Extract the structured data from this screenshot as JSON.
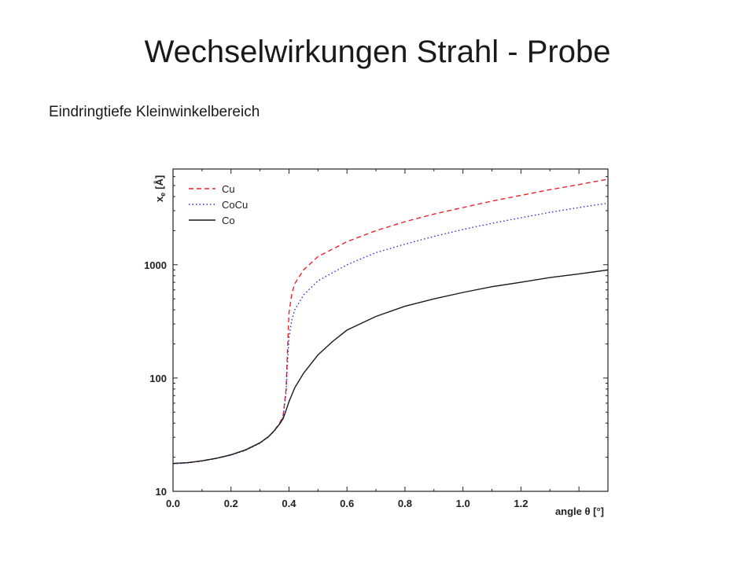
{
  "slide": {
    "title": "Wechselwirkungen Strahl - Probe",
    "subtitle": "Eindringtiefe Kleinwinkelbereich"
  },
  "chart_data": {
    "type": "line",
    "xlabel": "angle θ [°]",
    "ylabel": "x_e [Å]",
    "ylabel_main": "x",
    "ylabel_sub": "e",
    "ylabel_unit": "[Å]",
    "xlim": [
      0.0,
      1.5
    ],
    "ylim": [
      10,
      7000
    ],
    "yscale": "log",
    "xticks": [
      "0.0",
      "0.2",
      "0.4",
      "0.6",
      "0.8",
      "1.0",
      "1.2"
    ],
    "yticks": [
      {
        "value": 10,
        "label": "10"
      },
      {
        "value": 100,
        "label": "100"
      },
      {
        "value": 1000,
        "label": "1000"
      }
    ],
    "grid": false,
    "legend_position": "top-left",
    "series": [
      {
        "name": "Cu",
        "color": "#e8242b",
        "style": "dashed",
        "points": [
          [
            0.0,
            17.6
          ],
          [
            0.05,
            17.9
          ],
          [
            0.1,
            18.6
          ],
          [
            0.15,
            19.6
          ],
          [
            0.2,
            21.0
          ],
          [
            0.25,
            23.2
          ],
          [
            0.3,
            26.8
          ],
          [
            0.33,
            30.5
          ],
          [
            0.35,
            34.5
          ],
          [
            0.37,
            41
          ],
          [
            0.38,
            47
          ],
          [
            0.39,
            80
          ],
          [
            0.395,
            180
          ],
          [
            0.4,
            380
          ],
          [
            0.41,
            560
          ],
          [
            0.42,
            680
          ],
          [
            0.45,
            900
          ],
          [
            0.5,
            1180
          ],
          [
            0.6,
            1600
          ],
          [
            0.7,
            2000
          ],
          [
            0.8,
            2400
          ],
          [
            0.9,
            2800
          ],
          [
            1.0,
            3200
          ],
          [
            1.1,
            3650
          ],
          [
            1.2,
            4100
          ],
          [
            1.3,
            4600
          ],
          [
            1.4,
            5100
          ],
          [
            1.5,
            5700
          ]
        ]
      },
      {
        "name": "CoCu",
        "color": "#2a2ad6",
        "style": "dotted",
        "points": [
          [
            0.0,
            17.5
          ],
          [
            0.05,
            17.8
          ],
          [
            0.1,
            18.5
          ],
          [
            0.15,
            19.5
          ],
          [
            0.2,
            20.9
          ],
          [
            0.25,
            23.0
          ],
          [
            0.3,
            26.6
          ],
          [
            0.33,
            30.3
          ],
          [
            0.35,
            34.2
          ],
          [
            0.37,
            40
          ],
          [
            0.38,
            46
          ],
          [
            0.39,
            75
          ],
          [
            0.395,
            140
          ],
          [
            0.4,
            230
          ],
          [
            0.41,
            330
          ],
          [
            0.42,
            400
          ],
          [
            0.45,
            540
          ],
          [
            0.5,
            720
          ],
          [
            0.6,
            1000
          ],
          [
            0.7,
            1280
          ],
          [
            0.8,
            1520
          ],
          [
            0.9,
            1780
          ],
          [
            1.0,
            2050
          ],
          [
            1.1,
            2320
          ],
          [
            1.2,
            2600
          ],
          [
            1.3,
            2900
          ],
          [
            1.4,
            3200
          ],
          [
            1.5,
            3500
          ]
        ]
      },
      {
        "name": "Co",
        "color": "#1a1a1a",
        "style": "solid",
        "points": [
          [
            0.0,
            17.6
          ],
          [
            0.05,
            17.9
          ],
          [
            0.1,
            18.6
          ],
          [
            0.15,
            19.6
          ],
          [
            0.2,
            21.0
          ],
          [
            0.25,
            23.2
          ],
          [
            0.3,
            26.8
          ],
          [
            0.33,
            30.5
          ],
          [
            0.35,
            34.5
          ],
          [
            0.37,
            40
          ],
          [
            0.38,
            44
          ],
          [
            0.39,
            52
          ],
          [
            0.4,
            62
          ],
          [
            0.42,
            82
          ],
          [
            0.45,
            110
          ],
          [
            0.5,
            160
          ],
          [
            0.55,
            210
          ],
          [
            0.6,
            265
          ],
          [
            0.7,
            350
          ],
          [
            0.8,
            430
          ],
          [
            0.9,
            500
          ],
          [
            1.0,
            570
          ],
          [
            1.1,
            640
          ],
          [
            1.2,
            700
          ],
          [
            1.3,
            770
          ],
          [
            1.4,
            830
          ],
          [
            1.5,
            900
          ]
        ]
      }
    ]
  }
}
